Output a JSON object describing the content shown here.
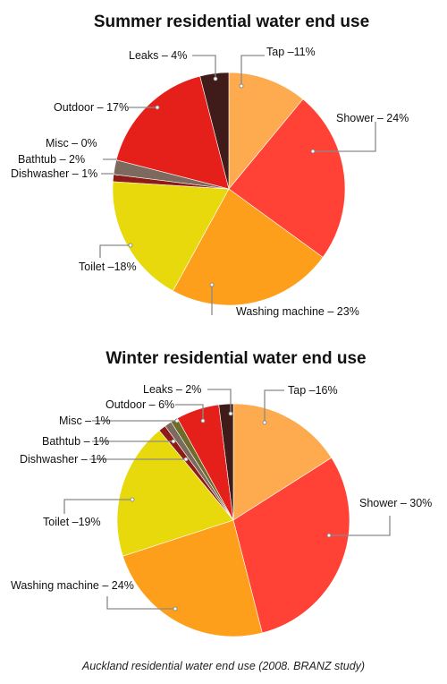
{
  "chart_data": [
    {
      "type": "pie",
      "title": "Summer residential water end use",
      "slices": [
        {
          "name": "Tap",
          "value": 11,
          "label": "Tap –11%",
          "color": "#fdab4e"
        },
        {
          "name": "Shower",
          "value": 24,
          "label": "Shower – 24%",
          "color": "#ff4136"
        },
        {
          "name": "Washing machine",
          "value": 23,
          "label": "Washing machine – 23%",
          "color": "#fd9f1a"
        },
        {
          "name": "Toilet",
          "value": 18,
          "label": "Toilet –18%",
          "color": "#e8d90c"
        },
        {
          "name": "Dishwasher",
          "value": 1,
          "label": "Dishwasher – 1%",
          "color": "#8e1b17"
        },
        {
          "name": "Bathtub",
          "value": 2,
          "label": "Bathtub – 2%",
          "color": "#7c6a5f"
        },
        {
          "name": "Misc",
          "value": 0,
          "label": "Misc – 0%",
          "color": "#6d6c2a"
        },
        {
          "name": "Outdoor",
          "value": 17,
          "label": "Outdoor – 17%",
          "color": "#e5201b"
        },
        {
          "name": "Leaks",
          "value": 4,
          "label": "Leaks – 4%",
          "color": "#3f1c1a"
        }
      ]
    },
    {
      "type": "pie",
      "title": "Winter residential water end use",
      "slices": [
        {
          "name": "Tap",
          "value": 16,
          "label": "Tap –16%",
          "color": "#fdab4e"
        },
        {
          "name": "Shower",
          "value": 30,
          "label": "Shower – 30%",
          "color": "#ff4136"
        },
        {
          "name": "Washing machine",
          "value": 24,
          "label": "Washing machine – 24%",
          "color": "#fd9f1a"
        },
        {
          "name": "Toilet",
          "value": 19,
          "label": "Toilet –19%",
          "color": "#e8d90c"
        },
        {
          "name": "Dishwasher",
          "value": 1,
          "label": "Dishwasher – 1%",
          "color": "#8e1b17"
        },
        {
          "name": "Bathtub",
          "value": 1,
          "label": "Bathtub – 1%",
          "color": "#7c6a5f"
        },
        {
          "name": "Misc",
          "value": 1,
          "label": "Misc – 1%",
          "color": "#6d6c2a"
        },
        {
          "name": "Outdoor",
          "value": 6,
          "label": "Outdoor – 6%",
          "color": "#e5201b"
        },
        {
          "name": "Leaks",
          "value": 2,
          "label": "Leaks – 2%",
          "color": "#3f1c1a"
        }
      ]
    }
  ],
  "caption": "Auckland residential water end use (2008. BRANZ study)"
}
